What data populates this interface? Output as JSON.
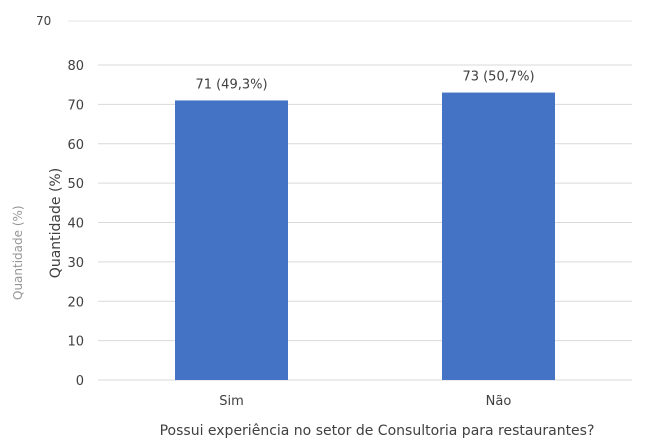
{
  "chart_data": {
    "type": "bar",
    "categories": [
      "Sim",
      "Não"
    ],
    "values": [
      71,
      73
    ],
    "data_labels": [
      "71 (49,3%)",
      "73 (50,7%)"
    ],
    "xlabel": "Possui experiência no setor de Consultoria para restaurantes?",
    "ylabel": "Quantidade (%)",
    "ylim": [
      0,
      80
    ],
    "yticks": [
      0,
      10,
      20,
      30,
      40,
      50,
      60,
      70,
      80
    ],
    "grid": true,
    "legend": "none",
    "bar_color": "#4472c4",
    "background_artifacts": {
      "ghost_tick": "70",
      "ghost_ylabel": "Quantidade (%)"
    }
  }
}
